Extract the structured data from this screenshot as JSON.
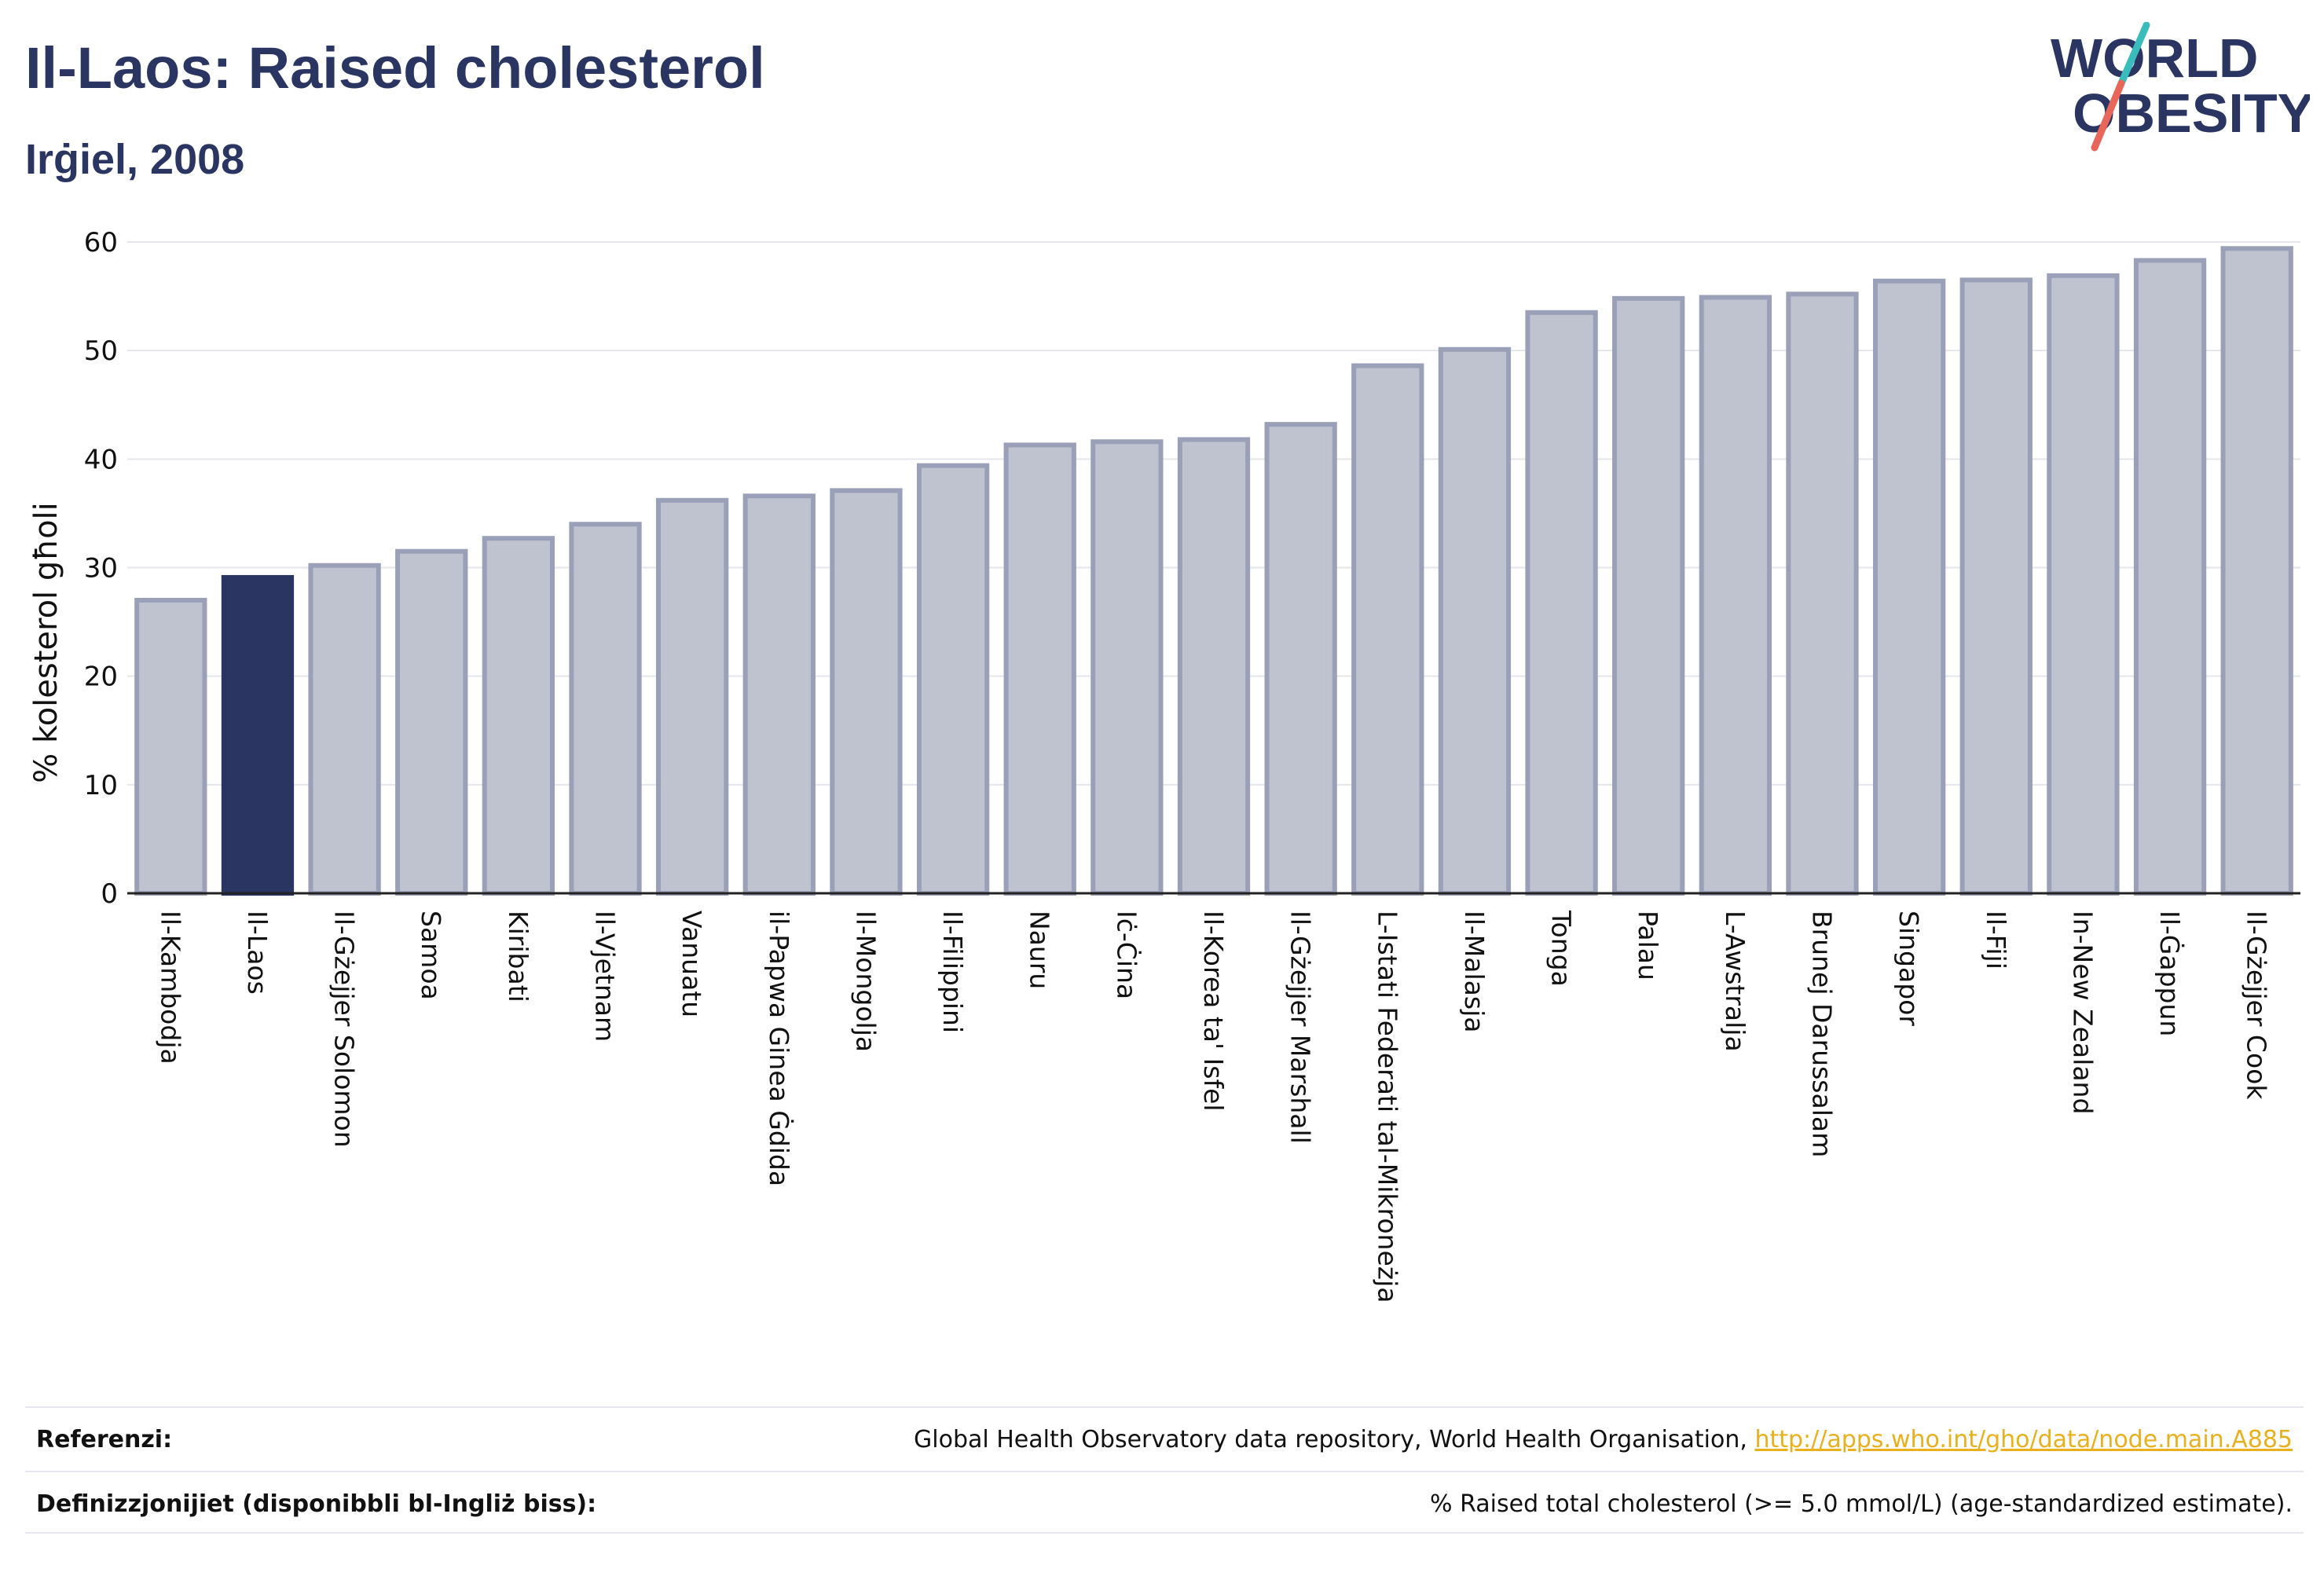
{
  "header": {
    "title": "Il-Laos: Raised cholesterol",
    "subtitle": "Irġiel, 2008"
  },
  "logo": {
    "line1": "WORLD",
    "line2": "OBESITY"
  },
  "colors": {
    "highlight": "#2a3561",
    "bar_fill": "#bfc2cf",
    "bar_stroke": "#9aa0b8",
    "accent_teal": "#3bbcbc",
    "accent_red": "#e8675a"
  },
  "chart_data": {
    "type": "bar",
    "ylabel": "% kolesterol għoli",
    "xlabel": "",
    "ylim": [
      0,
      60
    ],
    "yticks": [
      0,
      10,
      20,
      30,
      40,
      50,
      60
    ],
    "grid": true,
    "highlight_category": "Il-Laos",
    "categories": [
      "Il-Kambodja",
      "Il-Laos",
      "Il-Gżejjer Solomon",
      "Samoa",
      "Kiribati",
      "Il-Vjetnam",
      "Vanuatu",
      "il-Papwa Ginea Ġdida",
      "Il-Mongolja",
      "Il-Filippini",
      "Nauru",
      "Iċ-Ċina",
      "Il-Korea ta' Isfel",
      "Il-Gżejjer Marshall",
      "L-Istati Federati tal-Mikroneżja",
      "Il-Malasja",
      "Tonga",
      "Palau",
      "L-Awstralja",
      "Brunej Darussalam",
      "Singapor",
      "Il-Fiji",
      "In-New Zealand",
      "Il-Ġappun",
      "Il-Gżejjer Cook"
    ],
    "values": [
      27.0,
      29.1,
      30.2,
      31.5,
      32.7,
      34.0,
      36.2,
      36.6,
      37.1,
      39.4,
      41.3,
      41.6,
      41.8,
      43.2,
      48.6,
      50.1,
      53.5,
      54.8,
      54.9,
      55.2,
      56.4,
      56.5,
      56.9,
      58.3,
      59.4
    ]
  },
  "footer": {
    "references_label": "Referenzi:",
    "references_text": "Global Health Observatory data repository, World Health Organisation, ",
    "references_link": "http://apps.who.int/gho/data/node.main.A885",
    "definitions_label": "Definizzjonijiet (disponibbli bl-Ingliż biss):",
    "definitions_text": "% Raised total cholesterol (>= 5.0 mmol/L) (age-standardized estimate)."
  }
}
